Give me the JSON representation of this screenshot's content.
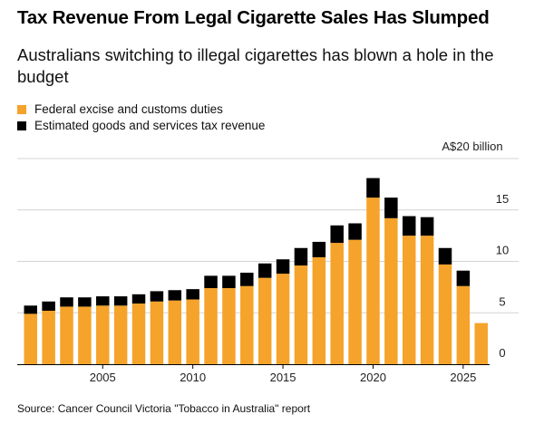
{
  "header": {
    "title": "Tax Revenue From Legal Cigarette Sales Has Slumped",
    "subtitle": "Australians switching to illegal cigarettes has blown a hole in the budget"
  },
  "legend": {
    "items": [
      {
        "label": "Federal excise and customs duties",
        "color": "#f5a32a"
      },
      {
        "label": "Estimated goods and services tax revenue",
        "color": "#000000"
      }
    ]
  },
  "footer": {
    "source": "Source: Cancer Council Victoria \"Tobacco in Australia\" report"
  },
  "chart_data": {
    "type": "bar",
    "stacked": true,
    "title": "Tax Revenue From Legal Cigarette Sales Has Slumped",
    "subtitle": "Australians switching to illegal cigarettes has blown a hole in the budget",
    "unit_label": "A$20 billion",
    "categories": [
      2001,
      2002,
      2003,
      2004,
      2005,
      2006,
      2007,
      2008,
      2009,
      2010,
      2011,
      2012,
      2013,
      2014,
      2015,
      2016,
      2017,
      2018,
      2019,
      2020,
      2021,
      2022,
      2023,
      2024,
      2025,
      2026
    ],
    "series": [
      {
        "name": "Federal excise and customs duties",
        "color": "#f5a32a",
        "values": [
          4.9,
          5.2,
          5.6,
          5.6,
          5.7,
          5.7,
          5.9,
          6.1,
          6.2,
          6.3,
          7.4,
          7.4,
          7.6,
          8.4,
          8.8,
          9.6,
          10.4,
          11.8,
          12.1,
          16.2,
          14.2,
          12.5,
          12.5,
          9.7,
          7.6,
          4.0
        ]
      },
      {
        "name": "Estimated goods and services tax revenue",
        "color": "#000000",
        "values": [
          0.8,
          0.9,
          0.9,
          0.9,
          0.9,
          0.9,
          0.9,
          1.0,
          1.0,
          1.0,
          1.2,
          1.2,
          1.3,
          1.4,
          1.4,
          1.7,
          1.5,
          1.7,
          1.6,
          1.9,
          2.0,
          1.9,
          1.8,
          1.6,
          1.5,
          0.0
        ]
      }
    ],
    "xticks": [
      {
        "value": 2005,
        "label": "2005"
      },
      {
        "value": 2010,
        "label": "2010"
      },
      {
        "value": 2015,
        "label": "2015"
      },
      {
        "value": 2020,
        "label": "2020"
      },
      {
        "value": 2025,
        "label": "2025"
      }
    ],
    "yticks": [
      {
        "value": 0,
        "label": "0"
      },
      {
        "value": 5,
        "label": "5"
      },
      {
        "value": 10,
        "label": "10"
      },
      {
        "value": 15,
        "label": "15"
      },
      {
        "value": 20,
        "label": "A$20 billion"
      }
    ],
    "ylim": [
      0,
      20
    ],
    "grid": true,
    "legend_position": "top-left"
  }
}
